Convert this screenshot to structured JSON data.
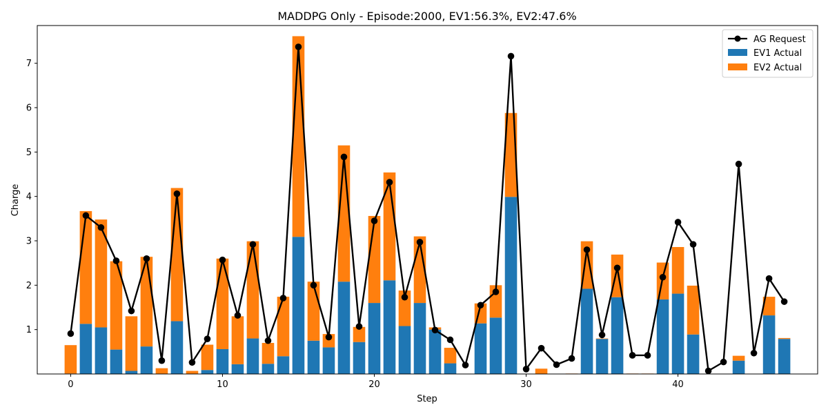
{
  "chart_data": {
    "type": "bar",
    "title": "MADDPG Only - Episode:2000, EV1:56.3%, EV2:47.6%",
    "xlabel": "Step",
    "ylabel": "Charge",
    "xlim": [
      -2.2,
      49.2
    ],
    "ylim": [
      0,
      7.85
    ],
    "xticks": [
      0,
      10,
      20,
      30,
      40
    ],
    "yticks": [
      1,
      2,
      3,
      4,
      5,
      6,
      7
    ],
    "legend_position": "top-right",
    "grid": false,
    "colors": {
      "ev1": "#1f77b4",
      "ev2": "#ff7f0e",
      "line": "#000000"
    },
    "x": [
      0,
      1,
      2,
      3,
      4,
      5,
      6,
      7,
      8,
      9,
      10,
      11,
      12,
      13,
      14,
      15,
      16,
      17,
      18,
      19,
      20,
      21,
      22,
      23,
      24,
      25,
      26,
      27,
      28,
      29,
      30,
      31,
      32,
      33,
      34,
      35,
      36,
      37,
      38,
      39,
      40,
      41,
      42,
      43,
      44,
      45,
      46,
      47
    ],
    "series": [
      {
        "name": "AG Request",
        "kind": "line",
        "values": [
          0.91,
          3.57,
          3.3,
          2.55,
          1.42,
          2.6,
          0.3,
          4.06,
          0.26,
          0.79,
          2.57,
          1.32,
          2.92,
          0.75,
          1.71,
          7.37,
          2.0,
          0.83,
          4.89,
          1.07,
          3.45,
          4.32,
          1.73,
          2.97,
          0.99,
          0.77,
          0.2,
          1.55,
          1.85,
          7.16,
          0.11,
          0.58,
          0.21,
          0.35,
          2.8,
          0.88,
          2.39,
          0.42,
          0.42,
          2.18,
          3.42,
          2.92,
          0.07,
          0.27,
          4.73,
          0.47,
          2.15,
          1.63
        ]
      },
      {
        "name": "EV1 Actual",
        "kind": "bar",
        "values": [
          0.01,
          1.13,
          1.05,
          0.55,
          0.07,
          0.62,
          0.0,
          1.19,
          0.0,
          0.09,
          0.56,
          0.22,
          0.8,
          0.23,
          0.4,
          3.09,
          0.75,
          0.6,
          2.08,
          0.72,
          1.6,
          2.11,
          1.08,
          1.6,
          1.0,
          0.24,
          0.0,
          1.14,
          1.27,
          3.99,
          0.0,
          0.0,
          0.0,
          0.0,
          1.92,
          0.79,
          1.73,
          0.0,
          0.0,
          1.68,
          1.81,
          0.89,
          0.0,
          0.0,
          0.3,
          0.0,
          1.32,
          0.79
        ]
      },
      {
        "name": "EV2 Actual",
        "kind": "bar",
        "values": [
          0.64,
          2.54,
          2.43,
          1.99,
          1.23,
          2.02,
          0.13,
          3.0,
          0.07,
          0.57,
          2.04,
          1.08,
          2.19,
          0.47,
          1.34,
          4.52,
          1.33,
          0.3,
          3.07,
          0.34,
          1.96,
          2.43,
          0.8,
          1.5,
          0.05,
          0.35,
          0.0,
          0.45,
          0.73,
          1.89,
          0.0,
          0.12,
          0.0,
          0.01,
          1.07,
          0.01,
          0.96,
          0.01,
          0.01,
          0.83,
          1.05,
          1.1,
          0.0,
          0.0,
          0.11,
          0.0,
          0.42,
          0.02
        ]
      }
    ]
  }
}
